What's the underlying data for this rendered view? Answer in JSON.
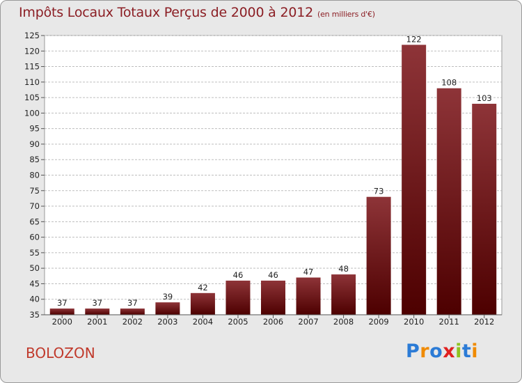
{
  "header": {
    "title": "Impôts Locaux Totaux Perçus de 2000 à 2012",
    "unit": "(en milliers d'€)"
  },
  "footer": {
    "place": "BOLOZON",
    "logo_text": "Proxiti"
  },
  "colors": {
    "bar_top": "#8e3438",
    "bar_bottom": "#4d0000",
    "title": "#8b1e24",
    "place": "#c0392b",
    "plot_background": "#ffffff",
    "grid": "#bdbdbd"
  },
  "chart_data": {
    "type": "bar",
    "title": "Impôts Locaux Totaux Perçus de 2000 à 2012",
    "subtitle": "(en milliers d'€)",
    "xlabel": "",
    "ylabel": "",
    "categories": [
      "2000",
      "2001",
      "2002",
      "2003",
      "2004",
      "2005",
      "2006",
      "2007",
      "2008",
      "2009",
      "2010",
      "2011",
      "2012"
    ],
    "values": [
      37,
      37,
      37,
      39,
      42,
      46,
      46,
      47,
      48,
      73,
      122,
      108,
      103
    ],
    "ylim": [
      35,
      125
    ],
    "ytick_step": 5,
    "grid": true,
    "legend": "none"
  }
}
